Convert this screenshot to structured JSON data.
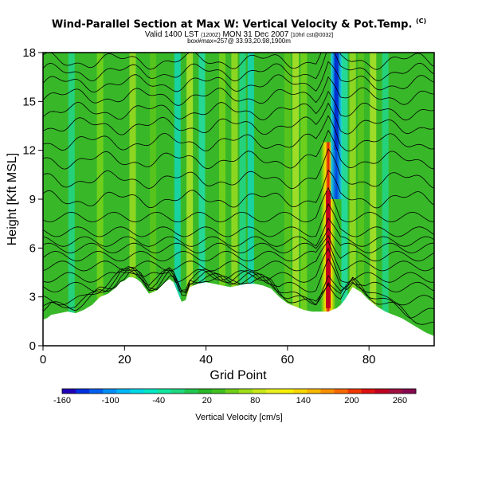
{
  "chart_data": {
    "type": "heatmap",
    "title": "Wind-Parallel Section at Max W: Vertical Velocity & Pot.Temp.",
    "title_mark": "(C)",
    "subtitle_valid": "Valid 1400 LST",
    "subtitle_time": "(1200Z)",
    "subtitle_date": "MON 31 Dec 2007",
    "subtitle_run": "[10hrl cst@0032]",
    "subtitle_box": "box#max=257@ 33.93,20.98,1900m",
    "xlabel": "Grid Point",
    "ylabel": "Height [Kft MSL]",
    "xlim": [
      0,
      96
    ],
    "ylim": [
      0,
      18
    ],
    "x_ticks": [
      "0",
      "20",
      "40",
      "60",
      "80"
    ],
    "x_tick_values": [
      0,
      20,
      40,
      60,
      80
    ],
    "y_ticks": [
      "0",
      "3",
      "6",
      "9",
      "12",
      "15",
      "18"
    ],
    "y_tick_values": [
      0,
      3,
      6,
      9,
      12,
      15,
      18
    ],
    "terrain_x": [
      0,
      1,
      2,
      4,
      6,
      8,
      10,
      12,
      14,
      16,
      18,
      19,
      20,
      21,
      22,
      23,
      24,
      26,
      28,
      30,
      31,
      32,
      33,
      34,
      35,
      36,
      38,
      40,
      42,
      44,
      46,
      48,
      50,
      52,
      54,
      56,
      58,
      60,
      62,
      64,
      66,
      68,
      69,
      70,
      71,
      72,
      73,
      74,
      76,
      78,
      80,
      82,
      84,
      86,
      88,
      90,
      92,
      94,
      96
    ],
    "terrain_kft": [
      1.6,
      1.7,
      1.9,
      2.0,
      2.1,
      2.0,
      2.2,
      2.5,
      3.0,
      3.2,
      3.6,
      3.9,
      4.0,
      4.2,
      4.2,
      4.1,
      3.9,
      3.2,
      3.4,
      3.9,
      4.1,
      3.9,
      3.3,
      2.7,
      2.8,
      3.6,
      3.8,
      3.9,
      3.8,
      3.7,
      3.6,
      3.7,
      3.8,
      3.8,
      3.7,
      3.5,
      3.0,
      2.6,
      2.4,
      2.2,
      2.1,
      2.1,
      2.1,
      2.1,
      2.2,
      2.3,
      2.5,
      2.8,
      3.6,
      3.3,
      2.8,
      2.4,
      2.1,
      1.9,
      1.7,
      1.4,
      1.1,
      0.8,
      0.6
    ],
    "updraft_x": 70,
    "updraft_peak_cms": 257,
    "downdraft_x": 72,
    "updraft_bands_x": [
      14,
      22,
      27,
      36,
      44,
      47,
      60,
      62,
      64,
      76,
      78,
      81
    ],
    "downdraft_bands_x": [
      7,
      33,
      39,
      49,
      51,
      74,
      84
    ],
    "theta_levels_kft": [
      1.2,
      2.0,
      2.8,
      3.6,
      4.2,
      4.9,
      5.5,
      6.0,
      6.4,
      7.0,
      7.9,
      9.0,
      10.2,
      11.4,
      12.5,
      13.5,
      14.4,
      15.3,
      16.1,
      16.8,
      17.5
    ],
    "colorbar": {
      "label": "Vertical Velocity [cm/s]",
      "tick_labels": [
        "-160",
        "-100",
        "-40",
        "20",
        "80",
        "140",
        "200",
        "260"
      ],
      "colors": [
        "#2000b8",
        "#0030e0",
        "#0060f0",
        "#0090f8",
        "#00b8f8",
        "#00d8e8",
        "#00e8c8",
        "#10e8a0",
        "#20d880",
        "#20c850",
        "#28b828",
        "#40c020",
        "#70d018",
        "#a0e018",
        "#c8e818",
        "#e8f020",
        "#f8f000",
        "#f8d800",
        "#f8b800",
        "#f89000",
        "#f86800",
        "#f03800",
        "#e01010",
        "#c00020",
        "#a01040",
        "#880850"
      ]
    }
  }
}
